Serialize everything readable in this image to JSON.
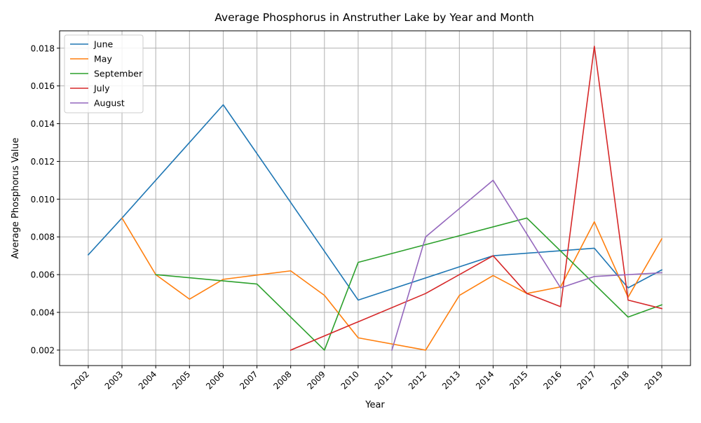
{
  "chart_data": {
    "type": "line",
    "title": "Average Phosphorus in Anstruther Lake by Year and Month",
    "xlabel": "Year",
    "ylabel": "Average Phosphorus Value",
    "x": [
      2002,
      2003,
      2004,
      2005,
      2006,
      2007,
      2008,
      2009,
      2010,
      2011,
      2012,
      2013,
      2014,
      2015,
      2016,
      2017,
      2018,
      2019
    ],
    "xlim": [
      2001.15,
      2019.85
    ],
    "ylim": [
      0.00118,
      0.01892
    ],
    "yticks": [
      "0.002",
      "0.004",
      "0.006",
      "0.008",
      "0.010",
      "0.012",
      "0.014",
      "0.016",
      "0.018"
    ],
    "ytick_values": [
      0.002,
      0.004,
      0.006,
      0.008,
      0.01,
      0.012,
      0.014,
      0.016,
      0.018
    ],
    "grid": true,
    "legend_position": "upper-left",
    "series": [
      {
        "name": "June",
        "color": "#1f77b4",
        "points": [
          [
            2002,
            0.00705
          ],
          [
            2003,
            0.009
          ],
          [
            2006,
            0.015
          ],
          [
            2010,
            0.00465
          ],
          [
            2014,
            0.007
          ],
          [
            2017,
            0.0074
          ],
          [
            2018,
            0.0053
          ],
          [
            2019,
            0.00625
          ]
        ]
      },
      {
        "name": "May",
        "color": "#ff7f0e",
        "points": [
          [
            2003,
            0.009
          ],
          [
            2004,
            0.006
          ],
          [
            2005,
            0.0047
          ],
          [
            2006,
            0.00575
          ],
          [
            2008,
            0.0062
          ],
          [
            2009,
            0.0049
          ],
          [
            2010,
            0.00265
          ],
          [
            2012,
            0.002
          ],
          [
            2013,
            0.0049
          ],
          [
            2014,
            0.00595
          ],
          [
            2015,
            0.005
          ],
          [
            2016,
            0.00535
          ],
          [
            2017,
            0.0088
          ],
          [
            2018,
            0.0048
          ],
          [
            2019,
            0.0079
          ]
        ]
      },
      {
        "name": "September",
        "color": "#2ca02c",
        "points": [
          [
            2004,
            0.006
          ],
          [
            2007,
            0.0055
          ],
          [
            2009,
            0.002
          ],
          [
            2010,
            0.00665
          ],
          [
            2015,
            0.009
          ],
          [
            2018,
            0.00375
          ],
          [
            2019,
            0.0044
          ]
        ]
      },
      {
        "name": "July",
        "color": "#d62728",
        "points": [
          [
            2008,
            0.002
          ],
          [
            2012,
            0.005
          ],
          [
            2014,
            0.007
          ],
          [
            2015,
            0.005
          ],
          [
            2016,
            0.0043
          ],
          [
            2017,
            0.0181
          ],
          [
            2018,
            0.00465
          ],
          [
            2019,
            0.0042
          ]
        ]
      },
      {
        "name": "August",
        "color": "#9467bd",
        "points": [
          [
            2011,
            0.002
          ],
          [
            2012,
            0.008
          ],
          [
            2014,
            0.011
          ],
          [
            2016,
            0.0053
          ],
          [
            2017,
            0.0059
          ],
          [
            2019,
            0.0061
          ]
        ]
      }
    ]
  }
}
